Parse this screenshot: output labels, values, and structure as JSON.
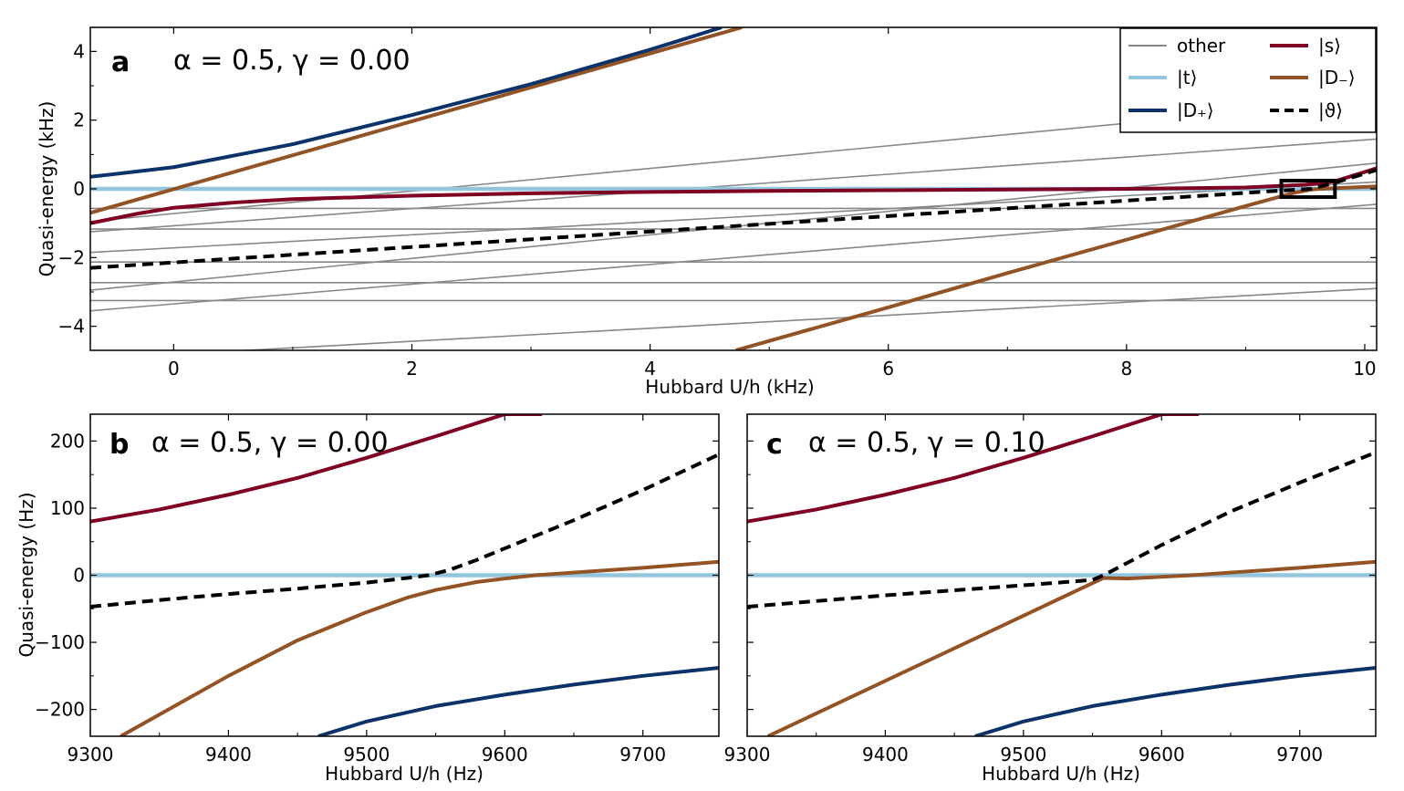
{
  "colors": {
    "other": "#888888",
    "t": "#92c5de",
    "s": "#7f0023",
    "D_plus": "#0b3369",
    "D_minus": "#935324",
    "theta": "#000000"
  },
  "legend": {
    "entries": [
      {
        "key": "other",
        "label": "other",
        "style": "thin"
      },
      {
        "key": "t",
        "label": "|t⟩",
        "style": "thick"
      },
      {
        "key": "D_plus",
        "label": "|D₊⟩",
        "style": "thick"
      },
      {
        "key": "s",
        "label": "|s⟩",
        "style": "thick"
      },
      {
        "key": "D_minus",
        "label": "|D₋⟩",
        "style": "thick"
      },
      {
        "key": "theta",
        "label": "|ϑ⟩",
        "style": "dashed"
      }
    ]
  },
  "chart_data": [
    {
      "id": "a",
      "type": "line",
      "panel_letter": "a",
      "title": "α = 0.5, γ = 0.00",
      "xlabel": "Hubbard U/h (kHz)",
      "ylabel": "Quasi-energy (kHz)",
      "xlim": [
        -0.7,
        10.1
      ],
      "ylim": [
        -4.7,
        4.7
      ],
      "xticks": [
        0,
        2,
        4,
        6,
        8,
        10
      ],
      "yticks": [
        -4,
        -2,
        0,
        2,
        4
      ],
      "inset_box": {
        "x": [
          9.3,
          9.75
        ],
        "y": [
          -0.24,
          0.24
        ]
      },
      "series": [
        {
          "key": "other",
          "x": [
            -0.7,
            10.1
          ],
          "y": [
            -0.57,
            -0.57
          ]
        },
        {
          "key": "other",
          "x": [
            -0.7,
            10.1
          ],
          "y": [
            -1.17,
            -1.17
          ]
        },
        {
          "key": "other",
          "x": [
            -0.7,
            10.1
          ],
          "y": [
            -2.13,
            -2.13
          ]
        },
        {
          "key": "other",
          "x": [
            -0.7,
            10.1
          ],
          "y": [
            -2.73,
            -2.73
          ]
        },
        {
          "key": "other",
          "x": [
            -0.7,
            10.1
          ],
          "y": [
            -3.25,
            -3.25
          ]
        },
        {
          "key": "other",
          "x": [
            -0.7,
            10.1
          ],
          "y": [
            4.7,
            4.7
          ]
        },
        {
          "key": "other",
          "x": [
            -0.7,
            10.1
          ],
          "y": [
            -1.85,
            0.2
          ]
        },
        {
          "key": "other",
          "x": [
            -0.7,
            10.1
          ],
          "y": [
            -0.95,
            2.6
          ]
        },
        {
          "key": "other",
          "x": [
            -0.7,
            10.1
          ],
          "y": [
            -1.25,
            1.45
          ]
        },
        {
          "key": "other",
          "x": [
            -0.7,
            10.1
          ],
          "y": [
            -2.95,
            0.75
          ]
        },
        {
          "key": "other",
          "x": [
            -0.7,
            10.1
          ],
          "y": [
            -3.55,
            -0.45
          ]
        },
        {
          "key": "other",
          "x": [
            -0.7,
            10.1
          ],
          "y": [
            -4.95,
            -2.9
          ]
        },
        {
          "key": "t",
          "x": [
            -0.7,
            10.1
          ],
          "y": [
            0,
            0
          ]
        },
        {
          "key": "D_plus",
          "x": [
            -0.7,
            0,
            1,
            2,
            3,
            4,
            4.6
          ],
          "y": [
            0.35,
            0.63,
            1.3,
            2.15,
            3.05,
            4.05,
            4.7
          ]
        },
        {
          "key": "D_minus",
          "x": [
            -0.7,
            4.77
          ],
          "y": [
            -0.7,
            4.7
          ]
        },
        {
          "key": "D_minus",
          "x": [
            4.72,
            6,
            7,
            8,
            9,
            9.4,
            9.55,
            9.62,
            9.75,
            10.1
          ],
          "y": [
            -4.7,
            -3.45,
            -2.45,
            -1.48,
            -0.5,
            -0.12,
            -0.02,
            0.0,
            0.02,
            0.07
          ]
        },
        {
          "key": "s",
          "x": [
            -0.7,
            -0.3,
            0,
            0.5,
            1,
            2,
            3,
            4,
            5,
            6,
            7,
            8,
            9,
            9.5,
            9.75,
            10.1
          ],
          "y": [
            -1.0,
            -0.72,
            -0.55,
            -0.4,
            -0.3,
            -0.2,
            -0.13,
            -0.09,
            -0.06,
            -0.04,
            -0.02,
            0.0,
            0.04,
            0.12,
            0.22,
            0.6
          ]
        },
        {
          "key": "theta",
          "x": [
            -0.7,
            9.3,
            9.55,
            9.75,
            10.1
          ],
          "y": [
            -2.3,
            -0.05,
            0.0,
            0.18,
            0.55
          ]
        }
      ]
    },
    {
      "id": "b",
      "type": "line",
      "panel_letter": "b",
      "title": "α = 0.5, γ = 0.00",
      "xlabel": "Hubbard U/h (Hz)",
      "ylabel": "Quasi-energy (Hz)",
      "xlim": [
        9300,
        9755
      ],
      "ylim": [
        -240,
        240
      ],
      "xticks": [
        9300,
        9400,
        9500,
        9600,
        9700
      ],
      "yticks": [
        -200,
        -100,
        0,
        100,
        200
      ],
      "series": [
        {
          "key": "t",
          "x": [
            9300,
            9755
          ],
          "y": [
            0,
            0
          ]
        },
        {
          "key": "s",
          "x": [
            9300,
            9350,
            9400,
            9450,
            9500,
            9550,
            9600,
            9627
          ],
          "y": [
            80,
            98,
            120,
            145,
            175,
            207,
            240,
            240
          ]
        },
        {
          "key": "D_plus",
          "x": [
            9465,
            9500,
            9550,
            9600,
            9650,
            9700,
            9755
          ],
          "y": [
            -240,
            -218,
            -195,
            -178,
            -163,
            -150,
            -138
          ]
        },
        {
          "key": "D_minus",
          "x": [
            9322,
            9400,
            9450,
            9500,
            9530,
            9550,
            9565,
            9580,
            9600,
            9622,
            9650,
            9700,
            9755
          ],
          "y": [
            -240,
            -150,
            -97,
            -55,
            -33,
            -22,
            -16,
            -10,
            -5,
            0,
            4,
            11,
            20
          ]
        },
        {
          "key": "theta",
          "x": [
            9300,
            9350,
            9400,
            9450,
            9500,
            9530,
            9545,
            9560,
            9580,
            9600,
            9650,
            9700,
            9755
          ],
          "y": [
            -47,
            -37,
            -28,
            -20,
            -11,
            -4,
            0,
            8,
            23,
            40,
            82,
            127,
            180
          ]
        }
      ]
    },
    {
      "id": "c",
      "type": "line",
      "panel_letter": "c",
      "title": "α = 0.5, γ = 0.10",
      "xlabel": "Hubbard U/h (Hz)",
      "ylabel": "",
      "xlim": [
        9300,
        9755
      ],
      "ylim": [
        -240,
        240
      ],
      "xticks": [
        9300,
        9400,
        9500,
        9600,
        9700
      ],
      "yticks": [
        -200,
        -100,
        0,
        100,
        200
      ],
      "series": [
        {
          "key": "t",
          "x": [
            9300,
            9755
          ],
          "y": [
            0,
            0
          ]
        },
        {
          "key": "s",
          "x": [
            9300,
            9350,
            9400,
            9450,
            9500,
            9550,
            9600,
            9627
          ],
          "y": [
            80,
            98,
            120,
            145,
            175,
            207,
            240,
            240
          ]
        },
        {
          "key": "D_plus",
          "x": [
            9465,
            9500,
            9550,
            9600,
            9650,
            9700,
            9755
          ],
          "y": [
            -240,
            -218,
            -195,
            -178,
            -163,
            -150,
            -138
          ]
        },
        {
          "key": "D_minus",
          "x": [
            9315,
            9558,
            9575,
            9622,
            9650,
            9700,
            9755
          ],
          "y": [
            -240,
            -4,
            -5,
            0,
            4,
            11,
            20
          ]
        },
        {
          "key": "theta",
          "x": [
            9300,
            9400,
            9500,
            9550,
            9558,
            9600,
            9650,
            9700,
            9755
          ],
          "y": [
            -47,
            -30,
            -15,
            -7,
            0,
            45,
            95,
            138,
            183
          ]
        }
      ]
    }
  ]
}
